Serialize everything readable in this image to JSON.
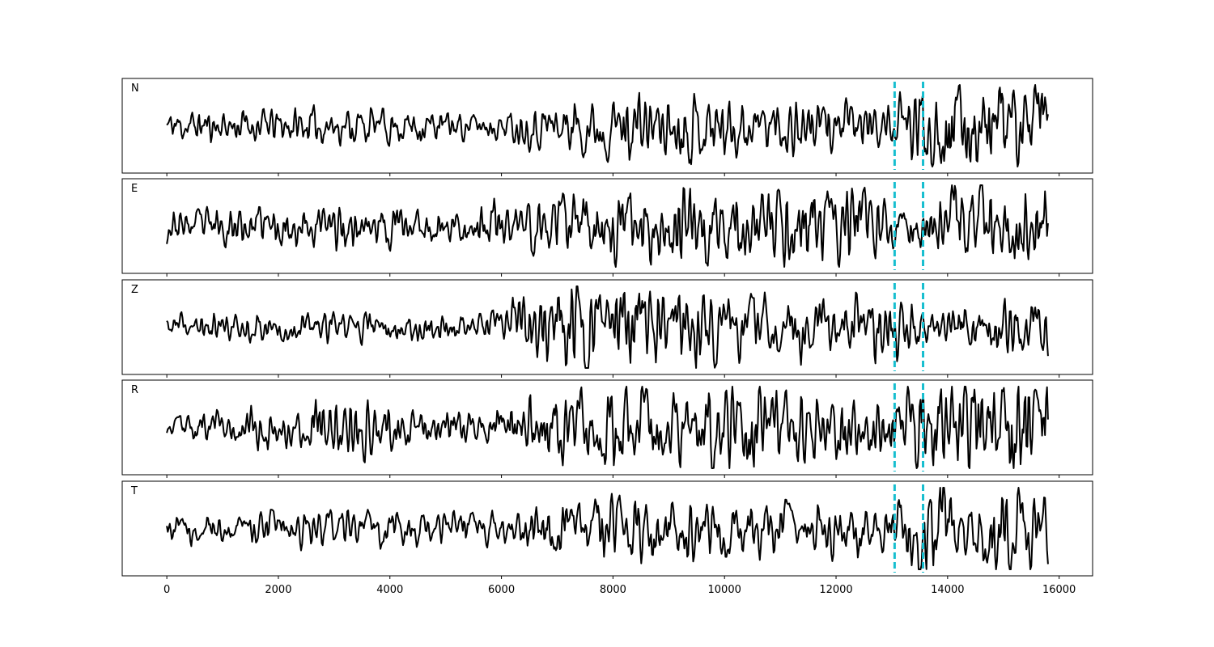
{
  "chart_data": {
    "type": "line",
    "xlim": [
      -800,
      16600
    ],
    "x_ticks": [
      0,
      2000,
      4000,
      6000,
      8000,
      10000,
      12000,
      14000,
      16000
    ],
    "x_tick_labels": [
      "0",
      "2000",
      "4000",
      "6000",
      "8000",
      "10000",
      "12000",
      "14000",
      "16000"
    ],
    "x_range": [
      0,
      15800
    ],
    "samples": 900,
    "grid": false,
    "shared_x": true,
    "trace_color": "#000000",
    "pick_color": "#17becf",
    "picks": [
      13050,
      13560
    ],
    "panels": [
      {
        "label": "N",
        "seed": 11,
        "amp": [
          [
            0,
            0.3
          ],
          [
            2000,
            0.35
          ],
          [
            4000,
            0.38
          ],
          [
            6000,
            0.25
          ],
          [
            7000,
            0.55
          ],
          [
            9000,
            0.65
          ],
          [
            11000,
            0.6
          ],
          [
            13000,
            0.4
          ],
          [
            13500,
            0.9
          ],
          [
            15800,
            0.85
          ]
        ]
      },
      {
        "label": "E",
        "seed": 23,
        "amp": [
          [
            0,
            0.3
          ],
          [
            3500,
            0.45
          ],
          [
            5000,
            0.3
          ],
          [
            6500,
            0.6
          ],
          [
            9000,
            0.7
          ],
          [
            12000,
            0.75
          ],
          [
            13000,
            0.5
          ],
          [
            14500,
            0.85
          ],
          [
            15800,
            0.9
          ]
        ]
      },
      {
        "label": "Z",
        "seed": 37,
        "amp": [
          [
            0,
            0.25
          ],
          [
            6000,
            0.3
          ],
          [
            6300,
            0.75
          ],
          [
            8000,
            0.9
          ],
          [
            10000,
            0.65
          ],
          [
            12000,
            0.55
          ],
          [
            13000,
            0.75
          ],
          [
            13500,
            0.4
          ],
          [
            15800,
            0.5
          ]
        ]
      },
      {
        "label": "R",
        "seed": 53,
        "amp": [
          [
            0,
            0.2
          ],
          [
            3500,
            0.55
          ],
          [
            4500,
            0.3
          ],
          [
            6000,
            0.35
          ],
          [
            7000,
            0.8
          ],
          [
            9000,
            0.7
          ],
          [
            11000,
            0.8
          ],
          [
            13000,
            0.45
          ],
          [
            13500,
            0.85
          ],
          [
            15800,
            0.95
          ]
        ]
      },
      {
        "label": "T",
        "seed": 71,
        "amp": [
          [
            0,
            0.3
          ],
          [
            4000,
            0.38
          ],
          [
            6000,
            0.28
          ],
          [
            7000,
            0.55
          ],
          [
            9000,
            0.7
          ],
          [
            11000,
            0.55
          ],
          [
            13000,
            0.45
          ],
          [
            13500,
            0.95
          ],
          [
            15800,
            0.75
          ]
        ]
      }
    ]
  }
}
